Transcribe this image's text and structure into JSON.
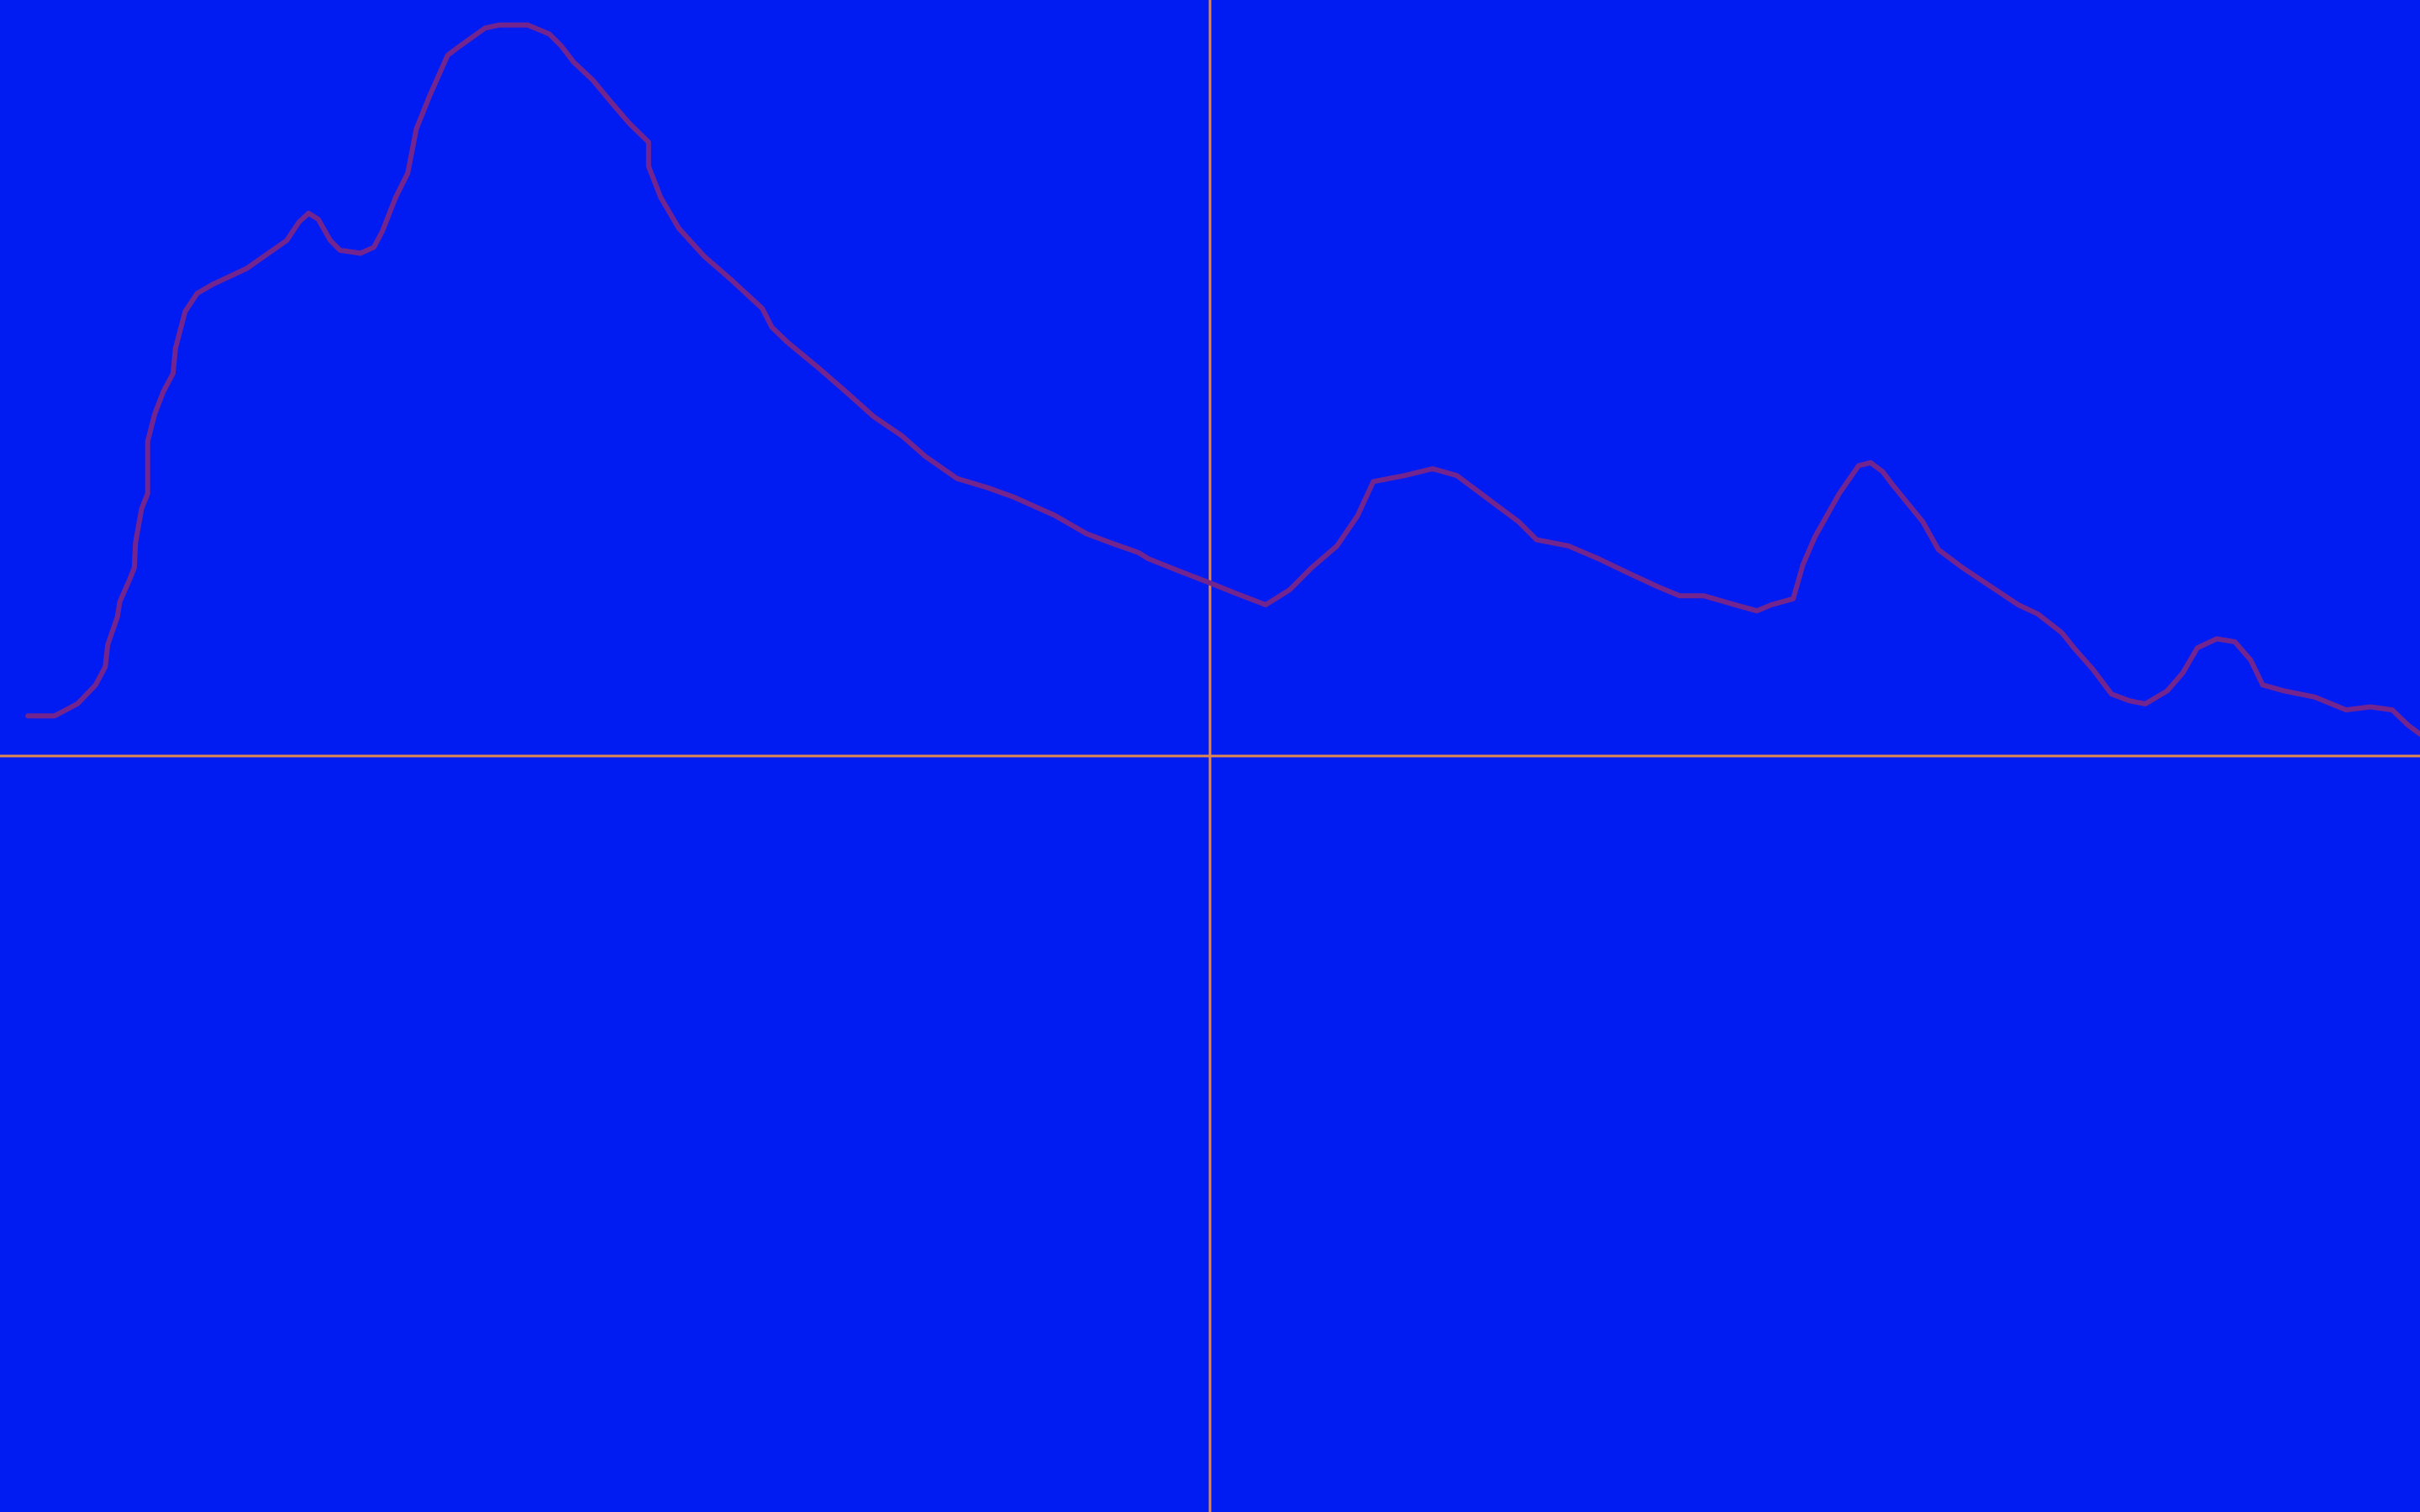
{
  "chart_data": {
    "type": "line",
    "color": "#72258f",
    "axis_color": "#e0874f",
    "background": "#001cf3",
    "xlim": [
      -1,
      1
    ],
    "ylim": [
      -1,
      1
    ],
    "x": [
      -0.977,
      -0.955,
      -0.936,
      -0.921,
      -0.913,
      -0.911,
      -0.903,
      -0.901,
      -0.893,
      -0.889,
      -0.888,
      -0.883,
      -0.878,
      -0.878,
      -0.872,
      -0.865,
      -0.857,
      -0.855,
      -0.847,
      -0.837,
      -0.824,
      -0.796,
      -0.763,
      -0.753,
      -0.745,
      -0.737,
      -0.727,
      -0.719,
      -0.702,
      -0.691,
      -0.684,
      -0.673,
      -0.663,
      -0.656,
      -0.645,
      -0.63,
      -0.62,
      -0.599,
      -0.587,
      -0.564,
      -0.546,
      -0.536,
      -0.526,
      -0.51,
      -0.495,
      -0.48,
      -0.464,
      -0.464,
      -0.454,
      -0.439,
      -0.418,
      -0.395,
      -0.37,
      -0.362,
      -0.349,
      -0.324,
      -0.301,
      -0.278,
      -0.255,
      -0.235,
      -0.209,
      -0.184,
      -0.163,
      -0.128,
      -0.102,
      -0.082,
      -0.059,
      -0.051,
      -0.026,
      0,
      0.02,
      0.046,
      0.066,
      0.084,
      0.105,
      0.122,
      0.135,
      0.161,
      0.184,
      0.204,
      0.224,
      0.255,
      0.27,
      0.296,
      0.321,
      0.347,
      0.37,
      0.388,
      0.408,
      0.434,
      0.452,
      0.464,
      0.482,
      0.49,
      0.5,
      0.52,
      0.536,
      0.546,
      0.556,
      0.564,
      0.589,
      0.602,
      0.622,
      0.653,
      0.668,
      0.684,
      0.704,
      0.714,
      0.73,
      0.745,
      0.76,
      0.773,
      0.791,
      0.804,
      0.816,
      0.832,
      0.847,
      0.86,
      0.87,
      0.888,
      0.913,
      0.939,
      0.959,
      0.977,
      0.99,
      1.0
    ],
    "values": [
      0.053,
      0.053,
      0.069,
      0.094,
      0.118,
      0.147,
      0.184,
      0.204,
      0.233,
      0.249,
      0.282,
      0.327,
      0.347,
      0.416,
      0.453,
      0.482,
      0.506,
      0.539,
      0.588,
      0.612,
      0.624,
      0.645,
      0.682,
      0.706,
      0.718,
      0.71,
      0.682,
      0.669,
      0.665,
      0.673,
      0.694,
      0.739,
      0.771,
      0.829,
      0.873,
      0.927,
      0.939,
      0.963,
      0.967,
      0.967,
      0.955,
      0.939,
      0.918,
      0.894,
      0.865,
      0.837,
      0.812,
      0.78,
      0.739,
      0.698,
      0.661,
      0.629,
      0.592,
      0.567,
      0.547,
      0.514,
      0.482,
      0.449,
      0.424,
      0.396,
      0.367,
      0.355,
      0.343,
      0.318,
      0.294,
      0.282,
      0.269,
      0.261,
      0.245,
      0.229,
      0.216,
      0.2,
      0.22,
      0.249,
      0.278,
      0.318,
      0.363,
      0.371,
      0.38,
      0.371,
      0.347,
      0.31,
      0.286,
      0.278,
      0.261,
      0.241,
      0.224,
      0.212,
      0.212,
      0.2,
      0.192,
      0.2,
      0.208,
      0.253,
      0.29,
      0.347,
      0.384,
      0.388,
      0.376,
      0.359,
      0.31,
      0.273,
      0.249,
      0.216,
      0.2,
      0.188,
      0.163,
      0.143,
      0.114,
      0.082,
      0.073,
      0.069,
      0.086,
      0.11,
      0.143,
      0.155,
      0.151,
      0.127,
      0.094,
      0.086,
      0.078,
      0.061,
      0.065,
      0.061,
      0.041,
      0.029
    ]
  }
}
